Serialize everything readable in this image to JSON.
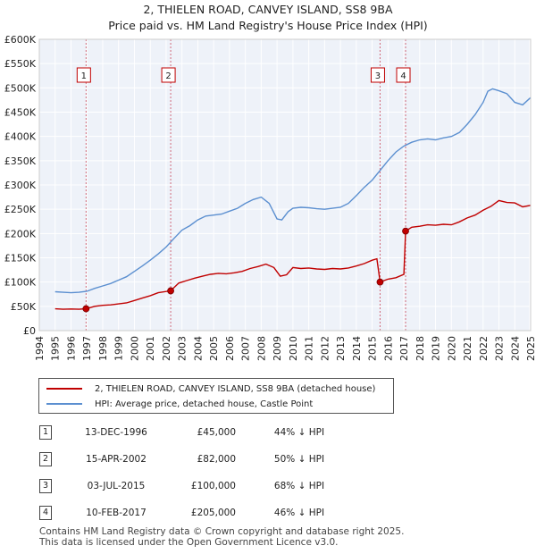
{
  "chart_data": {
    "type": "line",
    "title": "2, THIELEN ROAD, CANVEY ISLAND, SS8 9BA",
    "subtitle": "Price paid vs. HM Land Registry's House Price Index (HPI)",
    "xlabel": "",
    "ylabel": "",
    "xlim": [
      1994,
      2025
    ],
    "ylim": [
      0,
      600000
    ],
    "x_ticks": [
      "1994",
      "1995",
      "1996",
      "1997",
      "1998",
      "1999",
      "2000",
      "2001",
      "2002",
      "2003",
      "2004",
      "2005",
      "2006",
      "2007",
      "2008",
      "2009",
      "2010",
      "2011",
      "2012",
      "2013",
      "2014",
      "2015",
      "2016",
      "2017",
      "2018",
      "2019",
      "2020",
      "2021",
      "2022",
      "2023",
      "2024",
      "2025"
    ],
    "y_ticks": [
      "£0",
      "£50K",
      "£100K",
      "£150K",
      "£200K",
      "£250K",
      "£300K",
      "£350K",
      "£400K",
      "£450K",
      "£500K",
      "£550K",
      "£600K"
    ],
    "series": [
      {
        "name": "2, THIELEN ROAD, CANVEY ISLAND, SS8 9BA (detached house)",
        "color": "#c00000",
        "x": [
          1995.0,
          1995.5,
          1996.0,
          1996.5,
          1996.95,
          1997.5,
          1998.0,
          1998.5,
          1999.0,
          1999.5,
          2000.0,
          2000.5,
          2001.0,
          2001.5,
          2002.29,
          2002.8,
          2003.3,
          2003.8,
          2004.3,
          2004.8,
          2005.3,
          2005.8,
          2006.3,
          2006.8,
          2007.3,
          2007.8,
          2008.3,
          2008.8,
          2009.2,
          2009.6,
          2010.0,
          2010.5,
          2011.0,
          2011.5,
          2012.0,
          2012.5,
          2013.0,
          2013.5,
          2014.0,
          2014.5,
          2015.0,
          2015.3,
          2015.5,
          2016.0,
          2016.5,
          2017.0,
          2017.11,
          2017.5,
          2018.0,
          2018.5,
          2019.0,
          2019.5,
          2020.0,
          2020.5,
          2021.0,
          2021.5,
          2022.0,
          2022.5,
          2023.0,
          2023.5,
          2024.0,
          2024.5,
          2025.0
        ],
        "values": [
          45000,
          44000,
          44500,
          44000,
          45000,
          50000,
          52000,
          53000,
          55000,
          57000,
          62000,
          67000,
          72000,
          78000,
          82000,
          98000,
          103000,
          108000,
          112000,
          116000,
          118000,
          117000,
          119000,
          122000,
          128000,
          132000,
          137000,
          130000,
          112000,
          115000,
          130000,
          128000,
          129000,
          127000,
          126000,
          128000,
          127000,
          129000,
          133000,
          138000,
          145000,
          148000,
          100000,
          106000,
          109000,
          116000,
          205000,
          213000,
          215000,
          218000,
          217000,
          219000,
          218000,
          224000,
          232000,
          238000,
          248000,
          256000,
          268000,
          264000,
          263000,
          255000,
          258000
        ]
      },
      {
        "name": "HPI: Average price, detached house, Castle Point",
        "color": "#5b8fd0",
        "x": [
          1995.0,
          1995.5,
          1996.0,
          1996.5,
          1997.0,
          1997.5,
          1998.0,
          1998.5,
          1999.0,
          1999.5,
          2000.0,
          2000.5,
          2001.0,
          2001.5,
          2002.0,
          2002.5,
          2003.0,
          2003.5,
          2004.0,
          2004.5,
          2005.0,
          2005.5,
          2006.0,
          2006.5,
          2007.0,
          2007.5,
          2008.0,
          2008.5,
          2009.0,
          2009.3,
          2009.7,
          2010.0,
          2010.5,
          2011.0,
          2011.5,
          2012.0,
          2012.5,
          2013.0,
          2013.5,
          2014.0,
          2014.5,
          2015.0,
          2015.5,
          2016.0,
          2016.5,
          2017.0,
          2017.5,
          2018.0,
          2018.5,
          2019.0,
          2019.5,
          2020.0,
          2020.5,
          2021.0,
          2021.5,
          2022.0,
          2022.3,
          2022.6,
          2023.0,
          2023.5,
          2024.0,
          2024.5,
          2025.0
        ],
        "values": [
          80000,
          79000,
          78000,
          79000,
          81000,
          87000,
          92000,
          97000,
          104000,
          111000,
          122000,
          133000,
          145000,
          158000,
          172000,
          190000,
          207000,
          216000,
          228000,
          236000,
          238000,
          240000,
          246000,
          252000,
          262000,
          270000,
          275000,
          262000,
          230000,
          228000,
          245000,
          252000,
          254000,
          253000,
          251000,
          250000,
          252000,
          254000,
          262000,
          278000,
          295000,
          310000,
          330000,
          350000,
          368000,
          380000,
          388000,
          393000,
          395000,
          393000,
          397000,
          400000,
          408000,
          425000,
          445000,
          470000,
          493000,
          498000,
          494000,
          488000,
          470000,
          465000,
          480000
        ]
      }
    ],
    "markers": [
      {
        "label": "1",
        "x": 1996.95,
        "value": 45000
      },
      {
        "label": "2",
        "x": 2002.29,
        "value": 82000
      },
      {
        "label": "3",
        "x": 2015.5,
        "value": 100000
      },
      {
        "label": "4",
        "x": 2017.11,
        "value": 205000
      }
    ],
    "annotations": [
      {
        "label": "1",
        "x": 1996.95
      },
      {
        "label": "2",
        "x": 2002.29
      },
      {
        "label": "3",
        "x": 2015.5
      },
      {
        "label": "4",
        "x": 2017.11
      }
    ]
  },
  "legend": {
    "property_label": "2, THIELEN ROAD, CANVEY ISLAND, SS8 9BA (detached house)",
    "hpi_label": "HPI: Average price, detached house, Castle Point"
  },
  "sales": [
    {
      "num": "1",
      "date": "13-DEC-1996",
      "price": "£45,000",
      "hpi": "44% ↓ HPI"
    },
    {
      "num": "2",
      "date": "15-APR-2002",
      "price": "£82,000",
      "hpi": "50% ↓ HPI"
    },
    {
      "num": "3",
      "date": "03-JUL-2015",
      "price": "£100,000",
      "hpi": "68% ↓ HPI"
    },
    {
      "num": "4",
      "date": "10-FEB-2017",
      "price": "£205,000",
      "hpi": "46% ↓ HPI"
    }
  ],
  "footer": {
    "line1": "Contains HM Land Registry data © Crown copyright and database right 2025.",
    "line2": "This data is licensed under the Open Government Licence v3.0."
  }
}
